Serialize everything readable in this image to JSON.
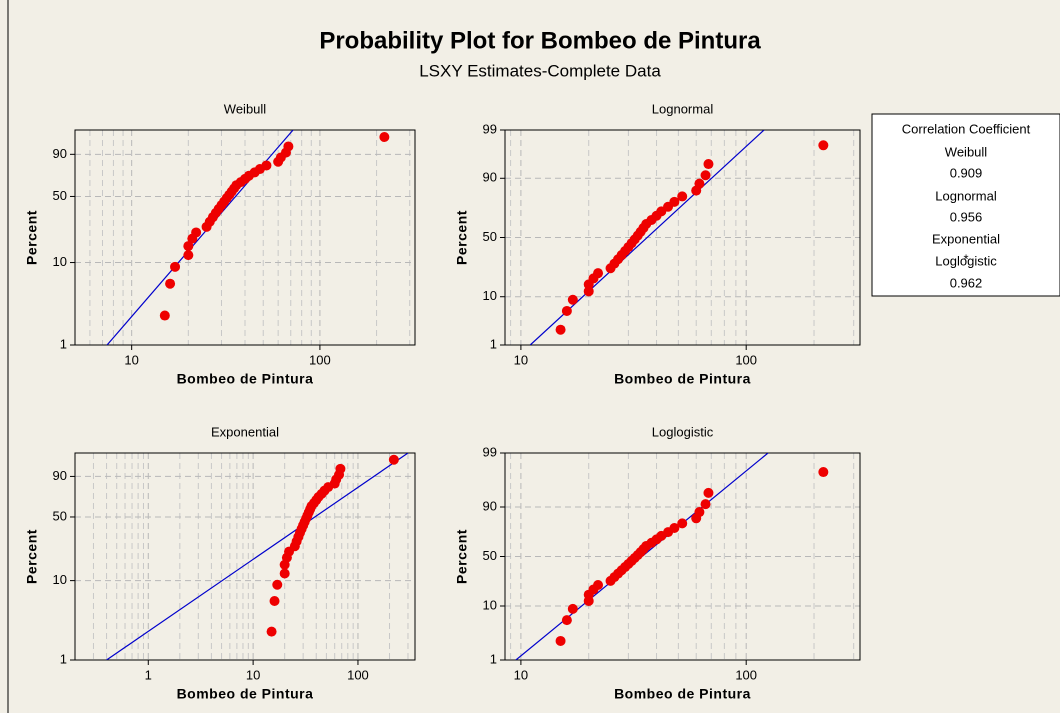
{
  "title": "Probability Plot for Bombeo de Pintura",
  "subtitle": "LSXY Estimates-Complete Data",
  "correlation": {
    "title": "Correlation Coefficient",
    "entries": [
      {
        "name": "Weibull",
        "value": "0.909"
      },
      {
        "name": "Lognormal",
        "value": "0.956"
      },
      {
        "name": "Exponential",
        "value": "*"
      },
      {
        "name": "Loglogistic",
        "value": "0.962"
      }
    ]
  },
  "chart_data": [
    {
      "type": "scatter",
      "title": "Weibull",
      "xlabel": "Bombeo de Pintura",
      "ylabel": "Percent",
      "xscale": "log",
      "yscale": "weibull",
      "grid": true,
      "minor_grid": true,
      "xlim": [
        5,
        320
      ],
      "ylim": [
        1,
        99
      ],
      "xticks": [
        10,
        100
      ],
      "yticks": [
        1,
        10,
        50,
        90
      ],
      "color": "#ee0000",
      "line_color": "#0000cc",
      "x": [
        15,
        16,
        17,
        20,
        20,
        21,
        22,
        25,
        26,
        27,
        28,
        29,
        30,
        31,
        32,
        33,
        34,
        35,
        36,
        38,
        40,
        42,
        45,
        48,
        52,
        60,
        62,
        66,
        68,
        220
      ],
      "values": [
        2.3,
        5.6,
        8.9,
        12.2,
        15.5,
        18.8,
        22.0,
        25.3,
        28.6,
        31.9,
        35.2,
        38.5,
        41.8,
        45.1,
        48.4,
        51.6,
        54.9,
        58.2,
        61.5,
        64.8,
        68.1,
        71.4,
        74.7,
        78.0,
        81.3,
        84.5,
        87.8,
        91.1,
        94.4,
        97.7
      ],
      "fit": {
        "x": [
          7.4,
          72
        ],
        "values": [
          1,
          99
        ]
      }
    },
    {
      "type": "scatter",
      "title": "Lognormal",
      "xlabel": "Bombeo de Pintura",
      "ylabel": "Percent",
      "xscale": "log",
      "yscale": "normal",
      "grid": true,
      "minor_grid": true,
      "xlim": [
        8.5,
        320
      ],
      "ylim": [
        1,
        99
      ],
      "xticks": [
        10,
        100
      ],
      "yticks": [
        1,
        10,
        50,
        90,
        99
      ],
      "color": "#ee0000",
      "line_color": "#0000cc",
      "x": [
        15,
        16,
        17,
        20,
        20,
        21,
        22,
        25,
        26,
        27,
        28,
        29,
        30,
        31,
        32,
        33,
        34,
        35,
        36,
        38,
        40,
        42,
        45,
        48,
        52,
        60,
        62,
        66,
        68,
        220
      ],
      "values": [
        2.3,
        5.6,
        8.9,
        12.2,
        15.5,
        18.8,
        22.0,
        25.3,
        28.6,
        31.9,
        35.2,
        38.5,
        41.8,
        45.1,
        48.4,
        51.6,
        54.9,
        58.2,
        61.5,
        64.8,
        68.1,
        71.4,
        74.7,
        78.0,
        81.3,
        84.5,
        87.8,
        91.1,
        94.4,
        97.7
      ],
      "fit": {
        "x": [
          11,
          120
        ],
        "values": [
          1,
          99
        ]
      }
    },
    {
      "type": "scatter",
      "title": "Exponential",
      "xlabel": "Bombeo de Pintura",
      "ylabel": "Percent",
      "xscale": "log",
      "yscale": "weibull",
      "grid": true,
      "minor_grid": true,
      "xlim": [
        0.2,
        350
      ],
      "ylim": [
        1,
        99
      ],
      "xticks": [
        1,
        10,
        100
      ],
      "yticks": [
        1,
        10,
        50,
        90
      ],
      "color": "#ee0000",
      "line_color": "#0000cc",
      "x": [
        15,
        16,
        17,
        20,
        20,
        21,
        22,
        25,
        26,
        27,
        28,
        29,
        30,
        31,
        32,
        33,
        34,
        35,
        36,
        38,
        40,
        42,
        45,
        48,
        52,
        60,
        62,
        66,
        68,
        220
      ],
      "values": [
        2.3,
        5.6,
        8.9,
        12.2,
        15.5,
        18.8,
        22.0,
        25.3,
        28.6,
        31.9,
        35.2,
        38.5,
        41.8,
        45.1,
        48.4,
        51.6,
        54.9,
        58.2,
        61.5,
        64.8,
        68.1,
        71.4,
        74.7,
        78.0,
        81.3,
        84.5,
        87.8,
        91.1,
        94.4,
        97.7
      ],
      "fit": {
        "x": [
          0.4,
          300
        ],
        "values": [
          1,
          99
        ]
      }
    },
    {
      "type": "scatter",
      "title": "Loglogistic",
      "xlabel": "Bombeo de Pintura",
      "ylabel": "Percent",
      "xscale": "log",
      "yscale": "logistic",
      "grid": true,
      "minor_grid": true,
      "xlim": [
        8.5,
        320
      ],
      "ylim": [
        1,
        99
      ],
      "xticks": [
        10,
        100
      ],
      "yticks": [
        1,
        10,
        50,
        90,
        99
      ],
      "color": "#ee0000",
      "line_color": "#0000cc",
      "x": [
        15,
        16,
        17,
        20,
        20,
        21,
        22,
        25,
        26,
        27,
        28,
        29,
        30,
        31,
        32,
        33,
        34,
        35,
        36,
        38,
        40,
        42,
        45,
        48,
        52,
        60,
        62,
        66,
        68,
        220
      ],
      "values": [
        2.3,
        5.6,
        8.9,
        12.2,
        15.5,
        18.8,
        22.0,
        25.3,
        28.6,
        31.9,
        35.2,
        38.5,
        41.8,
        45.1,
        48.4,
        51.6,
        54.9,
        58.2,
        61.5,
        64.8,
        68.1,
        71.4,
        74.7,
        78.0,
        81.3,
        84.5,
        87.8,
        91.1,
        94.4,
        97.7
      ],
      "fit": {
        "x": [
          9.5,
          125
        ],
        "values": [
          1,
          99
        ]
      }
    }
  ]
}
